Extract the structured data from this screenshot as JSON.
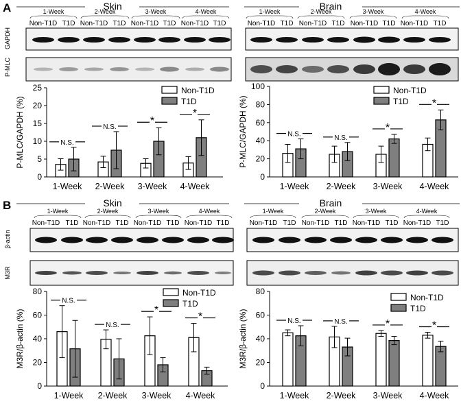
{
  "panel_A": {
    "label": "A",
    "tissue_left": "Skin",
    "tissue_right": "Brain",
    "weeks": [
      "1-Week",
      "2-Week",
      "3-Week",
      "4-Week"
    ],
    "group_a": "Non-T1D",
    "group_b": "T1D",
    "blot_labels": [
      "P-MLC",
      "GAPDH"
    ]
  },
  "panel_B": {
    "label": "B",
    "tissue_left": "Skin",
    "tissue_right": "Brain",
    "weeks": [
      "1-Week",
      "2-Week",
      "3-Week",
      "4-Week"
    ],
    "group_a": "Non-T1D",
    "group_b": "T1D",
    "blot_labels": [
      "β-actin",
      "M3R"
    ]
  },
  "colors": {
    "non_t1d": "#ffffff",
    "t1d": "#7f7f7f",
    "axis": "#000000"
  },
  "chart_data": [
    {
      "id": "A-skin",
      "type": "bar",
      "ylabel": "P-MLC/GAPDH (%)",
      "ylim": [
        0,
        25
      ],
      "yticks": [
        0,
        5,
        10,
        15,
        20,
        25
      ],
      "categories": [
        "1-Week",
        "2-Week",
        "3-Week",
        "4-Week"
      ],
      "series": [
        {
          "name": "Non-T1D",
          "values": [
            3.5,
            4.2,
            3.8,
            3.9
          ],
          "errors": [
            1.6,
            1.6,
            1.3,
            1.8
          ]
        },
        {
          "name": "T1D",
          "values": [
            5.0,
            7.5,
            10.0,
            11.0
          ],
          "errors": [
            3.3,
            5.2,
            3.8,
            5.0
          ]
        }
      ],
      "annotations": [
        "N.S.",
        "N.S.",
        "*",
        "*"
      ],
      "legend": "top-right"
    },
    {
      "id": "A-brain",
      "type": "bar",
      "ylabel": "P-MLC/GAPDH (%)",
      "ylim": [
        0,
        100
      ],
      "yticks": [
        0,
        20,
        40,
        60,
        80,
        100
      ],
      "categories": [
        "1-Week",
        "2-Week",
        "3-Week",
        "4-Week"
      ],
      "series": [
        {
          "name": "Non-T1D",
          "values": [
            26,
            25,
            25,
            36
          ],
          "errors": [
            10,
            9,
            9,
            7
          ]
        },
        {
          "name": "T1D",
          "values": [
            31,
            28,
            42,
            63
          ],
          "errors": [
            11,
            10,
            5,
            11
          ]
        }
      ],
      "annotations": [
        "N.S.",
        "N.S.",
        "*",
        "*"
      ],
      "legend": "top-right"
    },
    {
      "id": "B-skin",
      "type": "bar",
      "ylabel": "M3R/β-actin (%)",
      "ylim": [
        0,
        80
      ],
      "yticks": [
        0,
        20,
        40,
        60,
        80
      ],
      "categories": [
        "1-Week",
        "2-Week",
        "3-Week",
        "4-Week"
      ],
      "series": [
        {
          "name": "Non-T1D",
          "values": [
            46,
            39.5,
            42.5,
            41
          ],
          "errors": [
            22,
            8,
            16,
            12
          ]
        },
        {
          "name": "T1D",
          "values": [
            31.5,
            23,
            18,
            13
          ],
          "errors": [
            24,
            17,
            6,
            3
          ]
        }
      ],
      "annotations": [
        "N.S.",
        "N.S.",
        "*",
        "*"
      ],
      "legend": "top-right"
    },
    {
      "id": "B-brain",
      "type": "bar",
      "ylabel": "M3R/β-actin (%)",
      "ylim": [
        0,
        80
      ],
      "yticks": [
        0,
        20,
        40,
        60,
        80
      ],
      "categories": [
        "1-Week",
        "2-Week",
        "3-Week",
        "4-Week"
      ],
      "series": [
        {
          "name": "Non-T1D",
          "values": [
            45,
            41.5,
            44.5,
            43
          ],
          "errors": [
            2.5,
            9,
            2.5,
            2.5
          ]
        },
        {
          "name": "T1D",
          "values": [
            42.5,
            33,
            38.5,
            33.5
          ],
          "errors": [
            8.5,
            7.5,
            3.5,
            4.5
          ]
        }
      ],
      "annotations": [
        "N.S.",
        "N.S.",
        "*",
        "*"
      ],
      "legend": "top-right"
    }
  ]
}
